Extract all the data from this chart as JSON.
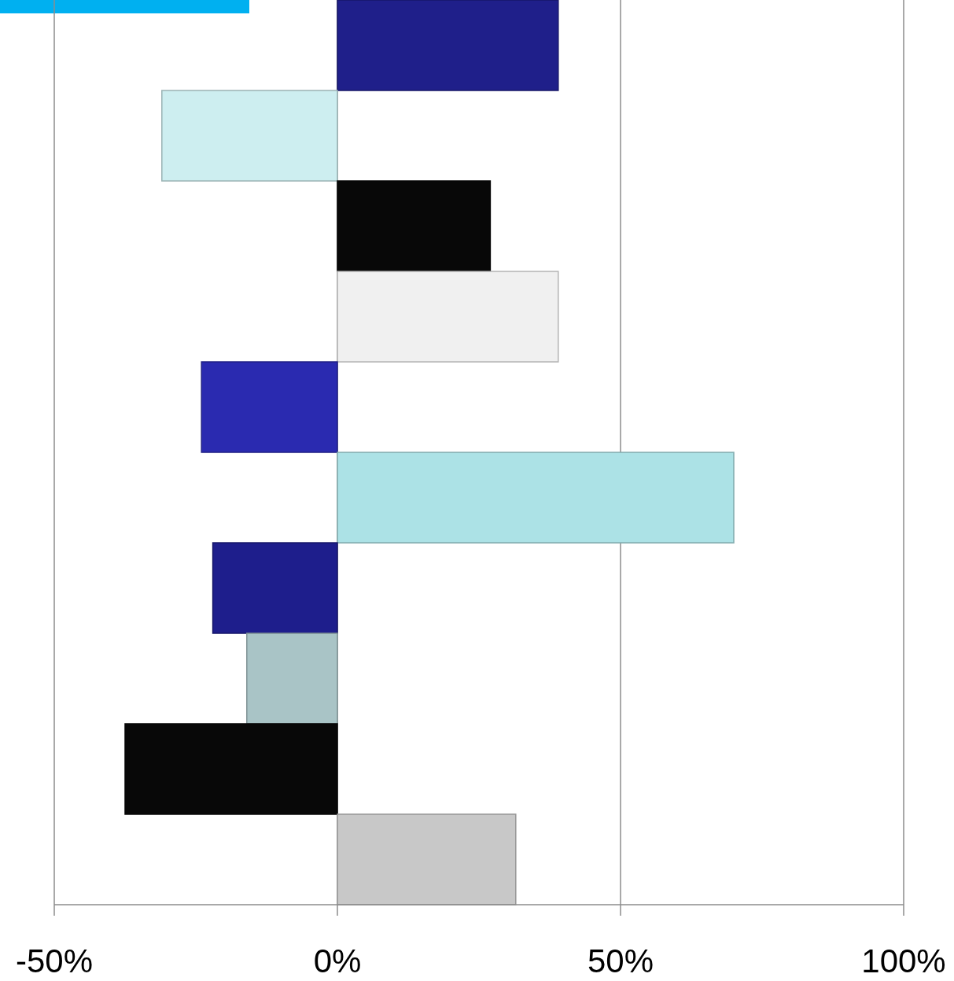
{
  "chart_data": {
    "type": "bar",
    "orientation": "horizontal",
    "categories": [
      null,
      null,
      null,
      null,
      null,
      null,
      null,
      null,
      null,
      null
    ],
    "values": [
      39,
      -31,
      27,
      39,
      -24,
      70,
      -22,
      -16,
      -37.5,
      31.5
    ],
    "colors": [
      "#1f1f8a",
      "#cdeef0",
      "#080808",
      "#f0f0f0",
      "#2a2ab0",
      "#ace2e6",
      "#1e1e8c",
      "#a9c4c6",
      "#080808",
      "#c8c8c8"
    ],
    "xlim": [
      -50,
      100
    ],
    "xticks": [
      {
        "value": -50,
        "label": "-50%"
      },
      {
        "value": 0,
        "label": "0%"
      },
      {
        "value": 50,
        "label": "50%"
      },
      {
        "value": 100,
        "label": "100%"
      }
    ],
    "grid": "x"
  }
}
